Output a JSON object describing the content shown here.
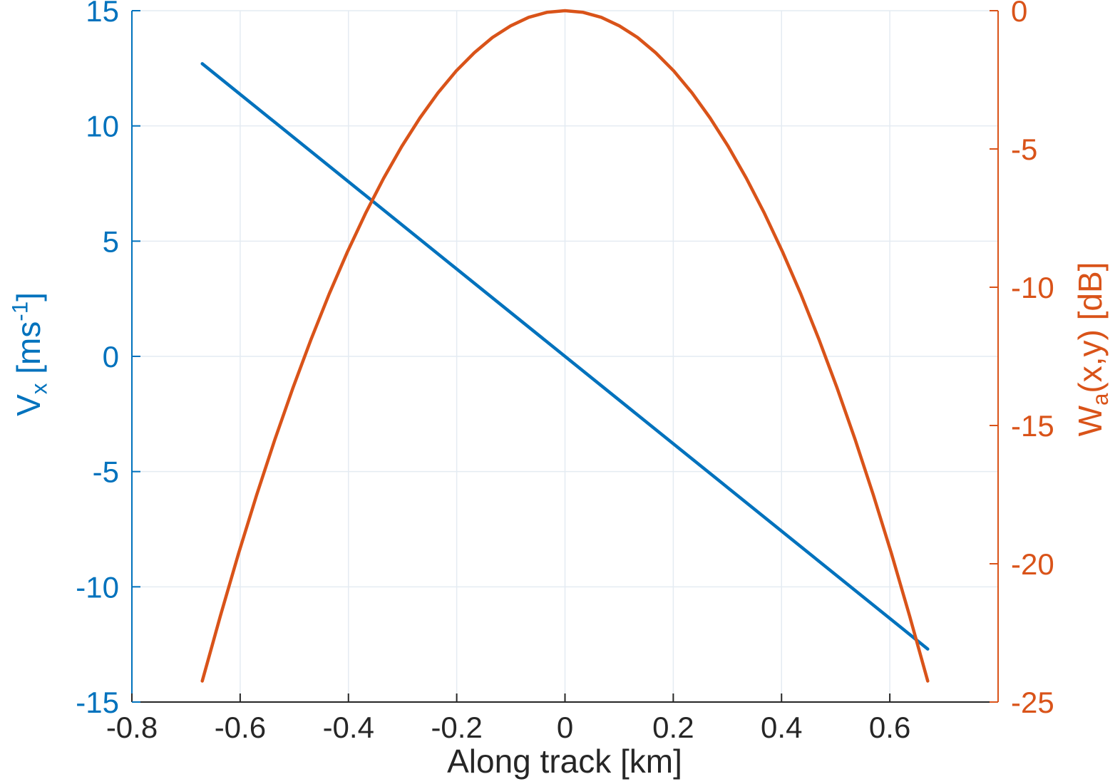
{
  "figure": {
    "background": "#ffffff",
    "xlabel": "Along track [km]",
    "left_label": {
      "base": "V",
      "sub": "x",
      "mid": " [ms",
      "sup": "-1",
      "end": "]"
    },
    "right_label": {
      "base": "W",
      "sub": "a",
      "mid": "(x,y) [dB]"
    }
  },
  "chart_data": {
    "type": "line",
    "title": "",
    "xlabel": "Along track [km]",
    "xlim": [
      -0.8,
      0.8
    ],
    "x_tick_labels": [
      "-0.8",
      "-0.6",
      "-0.4",
      "-0.2",
      "0",
      "0.2",
      "0.4",
      "0.6"
    ],
    "x_tick_values": [
      -0.8,
      -0.6,
      -0.4,
      -0.2,
      0,
      0.2,
      0.4,
      0.6
    ],
    "grid": true,
    "grid_color": "#e4ebf2",
    "axis_text_color": "#262626",
    "left_axis": {
      "label": "V_x [ms^-1]",
      "color": "#0072BD",
      "ylim": [
        -15,
        15
      ],
      "tick_labels": [
        "15",
        "10",
        "5",
        "0",
        "-5",
        "-10",
        "-15"
      ],
      "tick_values": [
        15,
        10,
        5,
        0,
        -5,
        -10,
        -15
      ]
    },
    "right_axis": {
      "label": "W_a(x,y) [dB]",
      "color": "#D95319",
      "ylim": [
        -25,
        0
      ],
      "tick_labels": [
        "0",
        "-5",
        "-10",
        "-15",
        "-20",
        "-25"
      ],
      "tick_values": [
        0,
        -5,
        -10,
        -15,
        -20,
        -25
      ]
    },
    "series": [
      {
        "name": "V_x",
        "axis": "left",
        "color": "#0072BD",
        "line_width": 4.5,
        "x": [
          -0.67,
          0,
          0.67
        ],
        "y": [
          12.7,
          0,
          -12.7
        ]
      },
      {
        "name": "W_a",
        "axis": "right",
        "color": "#D95319",
        "line_width": 4.5,
        "x": [
          -0.67,
          -0.6365,
          -0.603,
          -0.5695,
          -0.536,
          -0.5025,
          -0.469,
          -0.4355,
          -0.402,
          -0.3685,
          -0.335,
          -0.3015,
          -0.268,
          -0.2345,
          -0.201,
          -0.1675,
          -0.134,
          -0.1005,
          -0.067,
          -0.0335,
          0,
          0.0335,
          0.067,
          0.1005,
          0.134,
          0.1675,
          0.201,
          0.2345,
          0.268,
          0.3015,
          0.335,
          0.3685,
          0.402,
          0.4355,
          0.469,
          0.5025,
          0.536,
          0.5695,
          0.603,
          0.6365,
          0.67
        ],
        "y": [
          -24.24,
          -21.88,
          -19.63,
          -17.51,
          -15.51,
          -13.64,
          -11.88,
          -10.24,
          -8.73,
          -7.33,
          -6.06,
          -4.91,
          -3.88,
          -2.97,
          -2.18,
          -1.52,
          -0.97,
          -0.55,
          -0.24,
          -0.06,
          0,
          -0.06,
          -0.24,
          -0.55,
          -0.97,
          -1.52,
          -2.18,
          -2.97,
          -3.88,
          -4.91,
          -6.06,
          -7.33,
          -8.73,
          -10.24,
          -11.88,
          -13.64,
          -15.51,
          -17.51,
          -19.63,
          -21.88,
          -24.24
        ]
      }
    ]
  }
}
